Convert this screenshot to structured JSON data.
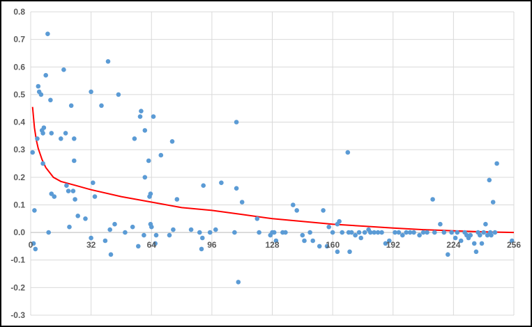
{
  "chart_data": {
    "type": "scatter",
    "title": "",
    "xlabel": "",
    "ylabel": "",
    "xlim": [
      0,
      256
    ],
    "ylim": [
      -0.3,
      0.8
    ],
    "x_ticks": [
      0,
      32,
      64,
      96,
      128,
      160,
      192,
      224,
      256
    ],
    "x_tick_labels": [
      "0",
      "32",
      "64",
      "96",
      "128",
      "160",
      "192",
      "224",
      "256"
    ],
    "y_ticks": [
      -0.3,
      -0.2,
      -0.1,
      0.0,
      0.1,
      0.2,
      0.3,
      0.4,
      0.5,
      0.6,
      0.7,
      0.8
    ],
    "y_tick_labels": [
      "-0.3",
      "-0.2",
      "-0.1",
      "0.0",
      "0.1",
      "0.2",
      "0.3",
      "0.4",
      "0.5",
      "0.6",
      "0.7",
      "0.8"
    ],
    "grid": {
      "horizontal": true,
      "vertical": true
    },
    "legend": "none",
    "series": [
      {
        "type": "scatter",
        "color": "#5b9bd5",
        "points": [
          [
            1,
            0.29
          ],
          [
            1.5,
            -0.04
          ],
          [
            2,
            0.08
          ],
          [
            2.5,
            -0.06
          ],
          [
            3.5,
            0.34
          ],
          [
            4,
            0.53
          ],
          [
            4.5,
            0.51
          ],
          [
            5.5,
            0.5
          ],
          [
            6,
            0.37
          ],
          [
            6.5,
            0.25
          ],
          [
            6.5,
            0.36
          ],
          [
            7,
            0.38
          ],
          [
            8,
            0.57
          ],
          [
            9,
            0.72
          ],
          [
            9.5,
            0.0
          ],
          [
            10.5,
            0.48
          ],
          [
            11,
            0.36
          ],
          [
            11,
            0.14
          ],
          [
            12.5,
            0.13
          ],
          [
            16,
            0.34
          ],
          [
            17.5,
            0.59
          ],
          [
            18.5,
            0.36
          ],
          [
            19,
            0.17
          ],
          [
            20,
            0.15
          ],
          [
            20.5,
            0.02
          ],
          [
            21.5,
            0.46
          ],
          [
            22.5,
            0.15
          ],
          [
            23,
            0.34
          ],
          [
            23,
            0.26
          ],
          [
            23.5,
            0.12
          ],
          [
            25,
            0.06
          ],
          [
            29,
            0.05
          ],
          [
            32,
            0.51
          ],
          [
            32,
            -0.02
          ],
          [
            33,
            0.18
          ],
          [
            34,
            0.13
          ],
          [
            37.5,
            0.46
          ],
          [
            39.5,
            -0.03
          ],
          [
            41,
            0.62
          ],
          [
            42,
            0.01
          ],
          [
            42.5,
            -0.08
          ],
          [
            44.5,
            0.03
          ],
          [
            46.5,
            0.5
          ],
          [
            50,
            0.0
          ],
          [
            54,
            0.02
          ],
          [
            55,
            0.34
          ],
          [
            57,
            -0.05
          ],
          [
            58,
            0.42
          ],
          [
            58.5,
            0.44
          ],
          [
            60,
            -0.01
          ],
          [
            60.5,
            0.37
          ],
          [
            60.5,
            0.2
          ],
          [
            62.5,
            0.26
          ],
          [
            63,
            0.13
          ],
          [
            63.5,
            0.14
          ],
          [
            63.5,
            0.03
          ],
          [
            64,
            0.02
          ],
          [
            65,
            0.42
          ],
          [
            66,
            -0.04
          ],
          [
            66.5,
            -0.01
          ],
          [
            69,
            0.28
          ],
          [
            73.5,
            -0.01
          ],
          [
            75,
            0.33
          ],
          [
            75.5,
            0.01
          ],
          [
            77.5,
            0.12
          ],
          [
            85,
            0.01
          ],
          [
            89.5,
            0.0
          ],
          [
            90.5,
            -0.06
          ],
          [
            91,
            -0.02
          ],
          [
            91.5,
            0.17
          ],
          [
            95,
            0.0
          ],
          [
            98,
            0.01
          ],
          [
            101,
            0.18
          ],
          [
            108,
            0.0
          ],
          [
            109,
            0.4
          ],
          [
            109,
            0.16
          ],
          [
            110,
            -0.18
          ],
          [
            112,
            0.11
          ],
          [
            120,
            0.05
          ],
          [
            121,
            0.0
          ],
          [
            127,
            -0.01
          ],
          [
            128,
            0.0
          ],
          [
            129,
            0.0
          ],
          [
            130,
            -0.03
          ],
          [
            133.5,
            0.0
          ],
          [
            135,
            0.0
          ],
          [
            139,
            0.1
          ],
          [
            141,
            0.08
          ],
          [
            144,
            -0.01
          ],
          [
            145,
            -0.03
          ],
          [
            148,
            0.0
          ],
          [
            149.5,
            -0.03
          ],
          [
            153,
            -0.05
          ],
          [
            155,
            0.08
          ],
          [
            157,
            -0.05
          ],
          [
            158,
            0.02
          ],
          [
            160,
            0.0
          ],
          [
            162.5,
            -0.07
          ],
          [
            162.5,
            0.03
          ],
          [
            163.5,
            0.04
          ],
          [
            165,
            0.0
          ],
          [
            168,
            0.29
          ],
          [
            168.5,
            0.0
          ],
          [
            169,
            -0.07
          ],
          [
            170,
            0.0
          ],
          [
            172,
            -0.01
          ],
          [
            174,
            0.0
          ],
          [
            175,
            -0.02
          ],
          [
            177,
            0.0
          ],
          [
            179,
            0.01
          ],
          [
            180,
            0.0
          ],
          [
            182,
            0.0
          ],
          [
            184,
            0.0
          ],
          [
            186,
            0.0
          ],
          [
            188,
            -0.04
          ],
          [
            190,
            -0.03
          ],
          [
            193,
            0.0
          ],
          [
            195,
            0.0
          ],
          [
            197,
            -0.01
          ],
          [
            199,
            0.0
          ],
          [
            201,
            0.0
          ],
          [
            203,
            0.0
          ],
          [
            206,
            -0.01
          ],
          [
            208,
            0.0
          ],
          [
            210,
            0.0
          ],
          [
            213,
            0.12
          ],
          [
            214,
            0.0
          ],
          [
            217,
            0.03
          ],
          [
            219,
            0.0
          ],
          [
            221,
            -0.08
          ],
          [
            223,
            0.0
          ],
          [
            225,
            -0.02
          ],
          [
            226,
            0.0
          ],
          [
            228,
            -0.03
          ],
          [
            230,
            0.0
          ],
          [
            231,
            -0.01
          ],
          [
            232,
            -0.02
          ],
          [
            233,
            -0.01
          ],
          [
            235,
            -0.04
          ],
          [
            236,
            -0.07
          ],
          [
            237,
            0.0
          ],
          [
            238,
            -0.01
          ],
          [
            239,
            -0.04
          ],
          [
            240,
            0.0
          ],
          [
            241,
            0.03
          ],
          [
            242,
            -0.01
          ],
          [
            243,
            0.19
          ],
          [
            243.5,
            0.0
          ],
          [
            244,
            -0.01
          ],
          [
            245,
            0.11
          ],
          [
            246,
            0.0
          ],
          [
            247,
            0.25
          ],
          [
            255,
            -0.03
          ]
        ]
      },
      {
        "type": "line",
        "color": "#ff0000",
        "points": [
          [
            1,
            0.455
          ],
          [
            2,
            0.38
          ],
          [
            3,
            0.335
          ],
          [
            4,
            0.305
          ],
          [
            6,
            0.265
          ],
          [
            8,
            0.235
          ],
          [
            12,
            0.2
          ],
          [
            16,
            0.185
          ],
          [
            24,
            0.17
          ],
          [
            32,
            0.155
          ],
          [
            48,
            0.13
          ],
          [
            64,
            0.11
          ],
          [
            80,
            0.09
          ],
          [
            96,
            0.08
          ],
          [
            112,
            0.065
          ],
          [
            128,
            0.05
          ],
          [
            144,
            0.04
          ],
          [
            160,
            0.03
          ],
          [
            176,
            0.023
          ],
          [
            192,
            0.016
          ],
          [
            208,
            0.01
          ],
          [
            224,
            0.006
          ],
          [
            240,
            0.002
          ],
          [
            256,
            0.0
          ]
        ]
      }
    ]
  }
}
